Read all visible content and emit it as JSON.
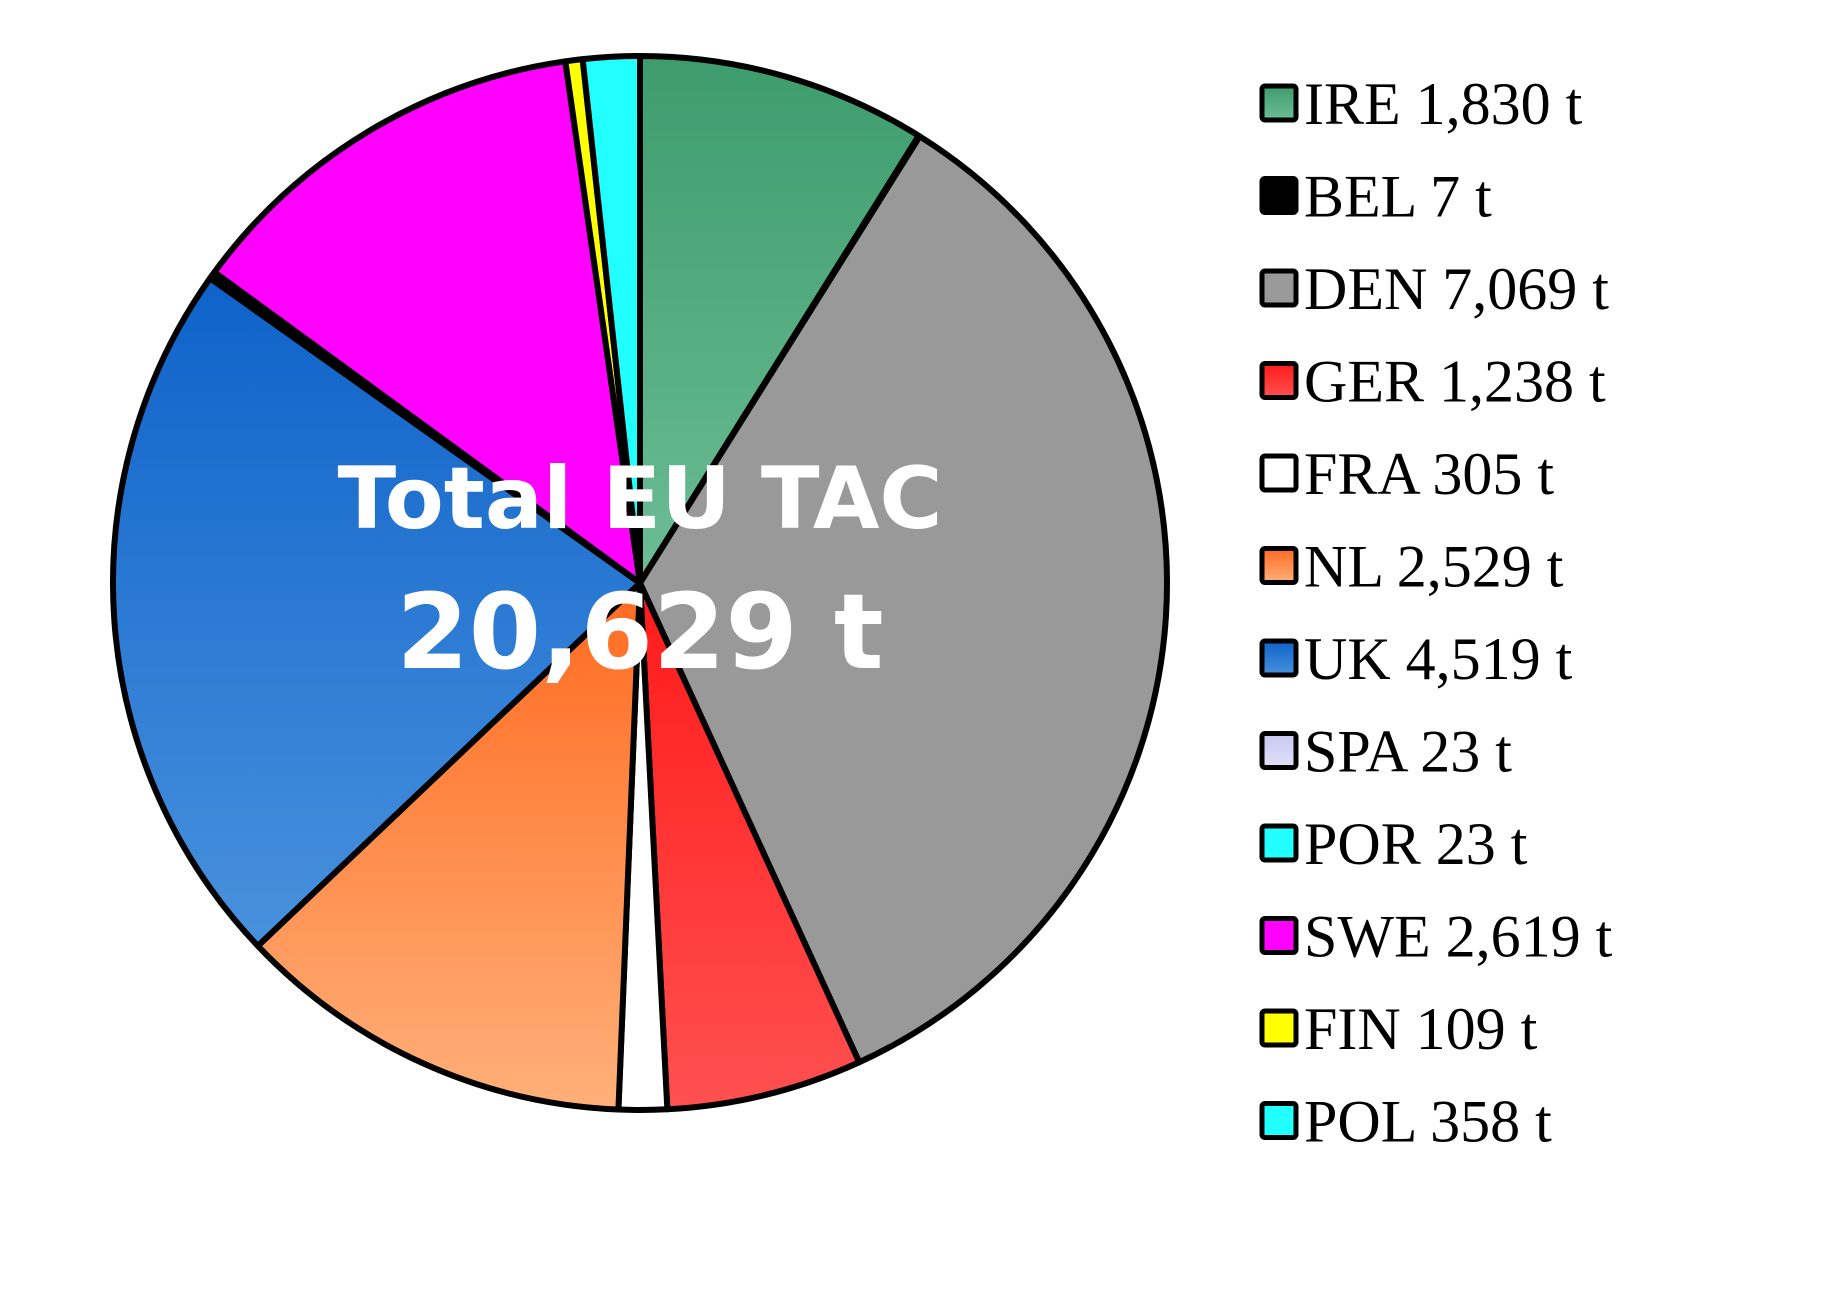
{
  "chart_data": {
    "type": "pie",
    "title": "",
    "center_label": {
      "line1": "Total EU TAC",
      "line2": "20,629 t"
    },
    "start_angle_deg": 0,
    "direction": "clockwise",
    "slices": [
      {
        "label": "IRE",
        "value": 1830,
        "legend_text": "IRE 1,830 t",
        "color": "#3d9c6c",
        "color_light": "#6cbd95"
      },
      {
        "label": "BEL",
        "value": 7,
        "legend_text": "BEL 7 t",
        "color": "#000000",
        "color_light": "#000000"
      },
      {
        "label": "DEN",
        "value": 7069,
        "legend_text": "DEN 7,069 t",
        "color": "#999999",
        "color_light": "#999999"
      },
      {
        "label": "GER",
        "value": 1238,
        "legend_text": "GER 1,238 t",
        "color": "#ff1a1a",
        "color_light": "#ff5050"
      },
      {
        "label": "FRA",
        "value": 305,
        "legend_text": "FRA 305 t",
        "color": "#ffffff",
        "color_light": "#ffffff"
      },
      {
        "label": "NL",
        "value": 2529,
        "legend_text": "NL 2,529 t",
        "color": "#ff6a1f",
        "color_light": "#ffb07a"
      },
      {
        "label": "UK",
        "value": 4519,
        "legend_text": "UK 4,519 t",
        "color": "#0e62c9",
        "color_light": "#4891dd"
      },
      {
        "label": "SPA",
        "value": 23,
        "legend_text": "SPA 23 t",
        "color": "#c8c8f0",
        "color_light": "#e0e0fa"
      },
      {
        "label": "POR",
        "value": 23,
        "legend_text": "POR 23 t",
        "color": "#22ffff",
        "color_light": "#22ffff"
      },
      {
        "label": "SWE",
        "value": 2619,
        "legend_text": "SWE 2,619 t",
        "color": "#ff00ff",
        "color_light": "#ff00ff"
      },
      {
        "label": "FIN",
        "value": 109,
        "legend_text": "FIN 109 t",
        "color": "#ffff00",
        "color_light": "#ffff00"
      },
      {
        "label": "POL",
        "value": 358,
        "legend_text": "POL 358 t",
        "color": "#22ffff",
        "color_light": "#22ffff"
      }
    ],
    "legend_position": "right"
  }
}
